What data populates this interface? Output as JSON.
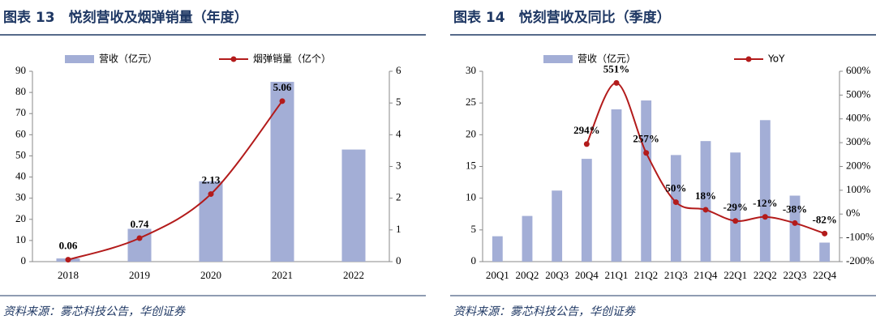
{
  "chart_data": [
    {
      "type": "bar-line",
      "title": "图表 13　悦刻营收及烟弹销量（年度）",
      "source": "资料来源：雾芯科技公告，华创证券",
      "categories": [
        "2018",
        "2019",
        "2020",
        "2021",
        "2022"
      ],
      "series": [
        {
          "name": "营收（亿元）",
          "color": "#a3aed6",
          "values": [
            1.5,
            15.5,
            38,
            85,
            53
          ]
        },
        {
          "name": "烟弹销量（亿个）",
          "color": "#b31b1b",
          "axis": "y2",
          "values": [
            0.06,
            0.74,
            2.13,
            5.06,
            null
          ]
        }
      ],
      "ylim": [
        0,
        90
      ],
      "yticks": [
        0,
        10,
        20,
        30,
        40,
        50,
        60,
        70,
        80,
        90
      ],
      "y2lim": [
        0,
        6
      ],
      "y2ticks": [
        0,
        1,
        2,
        3,
        4,
        5,
        6
      ]
    },
    {
      "type": "bar-line",
      "title": "图表 14　悦刻营收及同比（季度）",
      "source": "资料来源：雾芯科技公告，华创证券",
      "categories": [
        "20Q1",
        "20Q2",
        "20Q3",
        "20Q4",
        "21Q1",
        "21Q2",
        "21Q3",
        "21Q4",
        "22Q1",
        "22Q2",
        "22Q3",
        "22Q4"
      ],
      "series": [
        {
          "name": "营收（亿元）",
          "color": "#a3aed6",
          "values": [
            4,
            7.2,
            11.2,
            16.2,
            24,
            25.4,
            16.8,
            19,
            17.2,
            22.3,
            10.4,
            3
          ]
        },
        {
          "name": "YoY",
          "color": "#b31b1b",
          "axis": "y2",
          "values": [
            null,
            null,
            null,
            294,
            551,
            257,
            50,
            18,
            -29,
            -12,
            -38,
            -82
          ],
          "value_labels": [
            null,
            null,
            null,
            "294%",
            "551%",
            "257%",
            "50%",
            "18%",
            "-29%",
            "-12%",
            "-38%",
            "-82%"
          ]
        }
      ],
      "ylim": [
        0,
        30
      ],
      "yticks": [
        0,
        5,
        10,
        15,
        20,
        25,
        30
      ],
      "y2lim": [
        -200,
        600
      ],
      "y2ticks": [
        {
          "value": -200,
          "label": "-200%"
        },
        {
          "value": -100,
          "label": "-100%"
        },
        {
          "value": 0,
          "label": "0%"
        },
        {
          "value": 100,
          "label": "100%"
        },
        {
          "value": 200,
          "label": "200%"
        },
        {
          "value": 300,
          "label": "300%"
        },
        {
          "value": 400,
          "label": "400%"
        },
        {
          "value": 500,
          "label": "500%"
        },
        {
          "value": 600,
          "label": "600%"
        }
      ]
    }
  ]
}
